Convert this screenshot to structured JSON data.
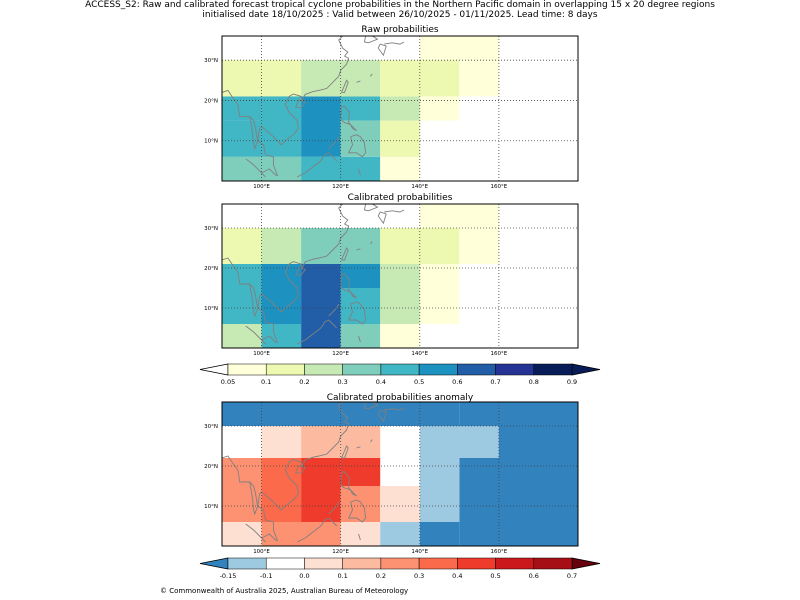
{
  "header": {
    "line1": "ACCESS_S2: Raw and calibrated forecast tropical cyclone probabilities in the Northern Pacific domain in overlapping 15 x 20 degree regions",
    "line2": "initialised date 18/10/2025 :  Valid between 26/10/2025 - 01/11/2025. Lead time: 8 days"
  },
  "footer": {
    "copyright": "© Commonwealth of Australia 2025, Australian Bureau of Meteorology"
  },
  "chart_data": [
    {
      "type": "heatmap",
      "title": "Raw probabilities",
      "x_ticks": [
        100,
        120,
        140,
        160
      ],
      "x_tick_labels": [
        "100°E",
        "120°E",
        "140°E",
        "160°E"
      ],
      "y_ticks": [
        10,
        20,
        30
      ],
      "y_tick_labels": [
        "10°N",
        "20°N",
        "30°N"
      ],
      "xlim": [
        90,
        180
      ],
      "ylim": [
        0,
        36
      ],
      "grid": true,
      "cells": [
        {
          "lon": [
            90,
            110
          ],
          "lat": [
            0,
            6
          ],
          "value": 0.38
        },
        {
          "lon": [
            90,
            100
          ],
          "lat": [
            6,
            15
          ],
          "value": 0.47
        },
        {
          "lon": [
            90,
            100
          ],
          "lat": [
            15,
            21
          ],
          "value": 0.4
        },
        {
          "lon": [
            90,
            110
          ],
          "lat": [
            21,
            30
          ],
          "value": 0.15
        },
        {
          "lon": [
            100,
            110
          ],
          "lat": [
            6,
            21
          ],
          "value": 0.47
        },
        {
          "lon": [
            110,
            120
          ],
          "lat": [
            6,
            21
          ],
          "value": 0.55
        },
        {
          "lon": [
            110,
            130
          ],
          "lat": [
            0,
            6
          ],
          "value": 0.47
        },
        {
          "lon": [
            110,
            120
          ],
          "lat": [
            21,
            30
          ],
          "value": 0.25
        },
        {
          "lon": [
            120,
            130
          ],
          "lat": [
            15,
            21
          ],
          "value": 0.47
        },
        {
          "lon": [
            120,
            130
          ],
          "lat": [
            6,
            15
          ],
          "value": 0.38
        },
        {
          "lon": [
            120,
            130
          ],
          "lat": [
            21,
            30
          ],
          "value": 0.25
        },
        {
          "lon": [
            130,
            140
          ],
          "lat": [
            0,
            6
          ],
          "value": 0.08
        },
        {
          "lon": [
            130,
            140
          ],
          "lat": [
            6,
            15
          ],
          "value": 0.15
        },
        {
          "lon": [
            130,
            140
          ],
          "lat": [
            15,
            21
          ],
          "value": 0.25
        },
        {
          "lon": [
            130,
            150
          ],
          "lat": [
            21,
            30
          ],
          "value": 0.15
        },
        {
          "lon": [
            140,
            150
          ],
          "lat": [
            15,
            21
          ],
          "value": 0.08
        },
        {
          "lon": [
            140,
            160
          ],
          "lat": [
            30,
            36
          ],
          "value": 0.08
        },
        {
          "lon": [
            150,
            160
          ],
          "lat": [
            21,
            30
          ],
          "value": 0.08
        }
      ]
    },
    {
      "type": "heatmap",
      "title": "Calibrated probabilities",
      "x_ticks": [
        100,
        120,
        140,
        160
      ],
      "x_tick_labels": [
        "100°E",
        "120°E",
        "140°E",
        "160°E"
      ],
      "y_ticks": [
        10,
        20,
        30
      ],
      "y_tick_labels": [
        "10°N",
        "20°N",
        "30°N"
      ],
      "xlim": [
        90,
        180
      ],
      "ylim": [
        0,
        36
      ],
      "grid": true,
      "cells": [
        {
          "lon": [
            90,
            100
          ],
          "lat": [
            0,
            6
          ],
          "value": 0.25
        },
        {
          "lon": [
            90,
            100
          ],
          "lat": [
            6,
            21
          ],
          "value": 0.4
        },
        {
          "lon": [
            90,
            100
          ],
          "lat": [
            21,
            30
          ],
          "value": 0.15
        },
        {
          "lon": [
            100,
            110
          ],
          "lat": [
            0,
            6
          ],
          "value": 0.47
        },
        {
          "lon": [
            100,
            110
          ],
          "lat": [
            6,
            21
          ],
          "value": 0.55
        },
        {
          "lon": [
            100,
            110
          ],
          "lat": [
            21,
            30
          ],
          "value": 0.25
        },
        {
          "lon": [
            110,
            120
          ],
          "lat": [
            0,
            21
          ],
          "value": 0.65
        },
        {
          "lon": [
            110,
            120
          ],
          "lat": [
            21,
            30
          ],
          "value": 0.38
        },
        {
          "lon": [
            120,
            130
          ],
          "lat": [
            0,
            6
          ],
          "value": 0.38
        },
        {
          "lon": [
            120,
            130
          ],
          "lat": [
            6,
            15
          ],
          "value": 0.47
        },
        {
          "lon": [
            120,
            130
          ],
          "lat": [
            15,
            21
          ],
          "value": 0.55
        },
        {
          "lon": [
            120,
            130
          ],
          "lat": [
            21,
            30
          ],
          "value": 0.38
        },
        {
          "lon": [
            130,
            140
          ],
          "lat": [
            0,
            6
          ],
          "value": 0.08
        },
        {
          "lon": [
            130,
            140
          ],
          "lat": [
            6,
            21
          ],
          "value": 0.25
        },
        {
          "lon": [
            130,
            150
          ],
          "lat": [
            21,
            30
          ],
          "value": 0.15
        },
        {
          "lon": [
            140,
            150
          ],
          "lat": [
            6,
            21
          ],
          "value": 0.08
        },
        {
          "lon": [
            140,
            160
          ],
          "lat": [
            30,
            36
          ],
          "value": 0.08
        },
        {
          "lon": [
            150,
            160
          ],
          "lat": [
            21,
            30
          ],
          "value": 0.08
        }
      ]
    },
    {
      "type": "heatmap",
      "title": "Calibrated probabilities anomaly",
      "x_ticks": [
        100,
        120,
        140,
        160
      ],
      "x_tick_labels": [
        "100°E",
        "120°E",
        "140°E",
        "160°E"
      ],
      "y_ticks": [
        10,
        20,
        30
      ],
      "y_tick_labels": [
        "10°N",
        "20°N",
        "30°N"
      ],
      "xlim": [
        90,
        180
      ],
      "ylim": [
        0,
        36
      ],
      "grid": true,
      "cells": [
        {
          "lon": [
            90,
            150
          ],
          "lat": [
            30,
            36
          ],
          "value": -0.2
        },
        {
          "lon": [
            150,
            180
          ],
          "lat": [
            0,
            36
          ],
          "value": -0.2
        },
        {
          "lon": [
            140,
            150
          ],
          "lat": [
            0,
            6
          ],
          "value": -0.2
        },
        {
          "lon": [
            140,
            150
          ],
          "lat": [
            6,
            30
          ],
          "value": -0.12
        },
        {
          "lon": [
            150,
            160
          ],
          "lat": [
            22,
            30
          ],
          "value": -0.12
        },
        {
          "lon": [
            100,
            110
          ],
          "lat": [
            22,
            30
          ],
          "value": 0.05
        },
        {
          "lon": [
            110,
            120
          ],
          "lat": [
            22,
            30
          ],
          "value": 0.15
        },
        {
          "lon": [
            120,
            130
          ],
          "lat": [
            22,
            30
          ],
          "value": 0.15
        },
        {
          "lon": [
            90,
            100
          ],
          "lat": [
            6,
            22
          ],
          "value": 0.25
        },
        {
          "lon": [
            100,
            110
          ],
          "lat": [
            6,
            22
          ],
          "value": 0.35
        },
        {
          "lon": [
            110,
            120
          ],
          "lat": [
            6,
            22
          ],
          "value": 0.45
        },
        {
          "lon": [
            120,
            130
          ],
          "lat": [
            15,
            22
          ],
          "value": 0.45
        },
        {
          "lon": [
            120,
            130
          ],
          "lat": [
            6,
            15
          ],
          "value": 0.25
        },
        {
          "lon": [
            130,
            140
          ],
          "lat": [
            6,
            15
          ],
          "value": 0.05
        },
        {
          "lon": [
            90,
            100
          ],
          "lat": [
            0,
            6
          ],
          "value": 0.05
        },
        {
          "lon": [
            100,
            120
          ],
          "lat": [
            0,
            6
          ],
          "value": 0.25
        },
        {
          "lon": [
            120,
            130
          ],
          "lat": [
            0,
            6
          ],
          "value": 0.05
        },
        {
          "lon": [
            130,
            140
          ],
          "lat": [
            0,
            6
          ],
          "value": -0.12
        }
      ]
    }
  ],
  "colorbars": [
    {
      "name": "probability-colorbar",
      "bounds": [
        0.05,
        0.1,
        0.2,
        0.3,
        0.4,
        0.5,
        0.6,
        0.7,
        0.8,
        0.9
      ],
      "labels": [
        "0.05",
        "0.1",
        "0.2",
        "0.3",
        "0.4",
        "0.5",
        "0.6",
        "0.7",
        "0.8",
        "0.9"
      ],
      "colors": [
        "#ffffd9",
        "#edf8b1",
        "#c7e9b4",
        "#7fcdbb",
        "#41b6c4",
        "#1d91c0",
        "#225ea8",
        "#253494",
        "#081d58"
      ],
      "under": "#ffffff",
      "over": "#081d58"
    },
    {
      "name": "anomaly-colorbar",
      "bounds": [
        -0.15,
        -0.1,
        0.0,
        0.1,
        0.2,
        0.3,
        0.4,
        0.5,
        0.6,
        0.7
      ],
      "labels": [
        "-0.15",
        "-0.1",
        "0.0",
        "0.1",
        "0.2",
        "0.3",
        "0.4",
        "0.5",
        "0.6",
        "0.7"
      ],
      "colors": [
        "#9ecae1",
        "#ffffff",
        "#fee0d2",
        "#fcbba1",
        "#fc9272",
        "#fb6a4a",
        "#ef3b2c",
        "#cb181d",
        "#a50f15"
      ],
      "under": "#3182bd",
      "over": "#67000d"
    }
  ]
}
